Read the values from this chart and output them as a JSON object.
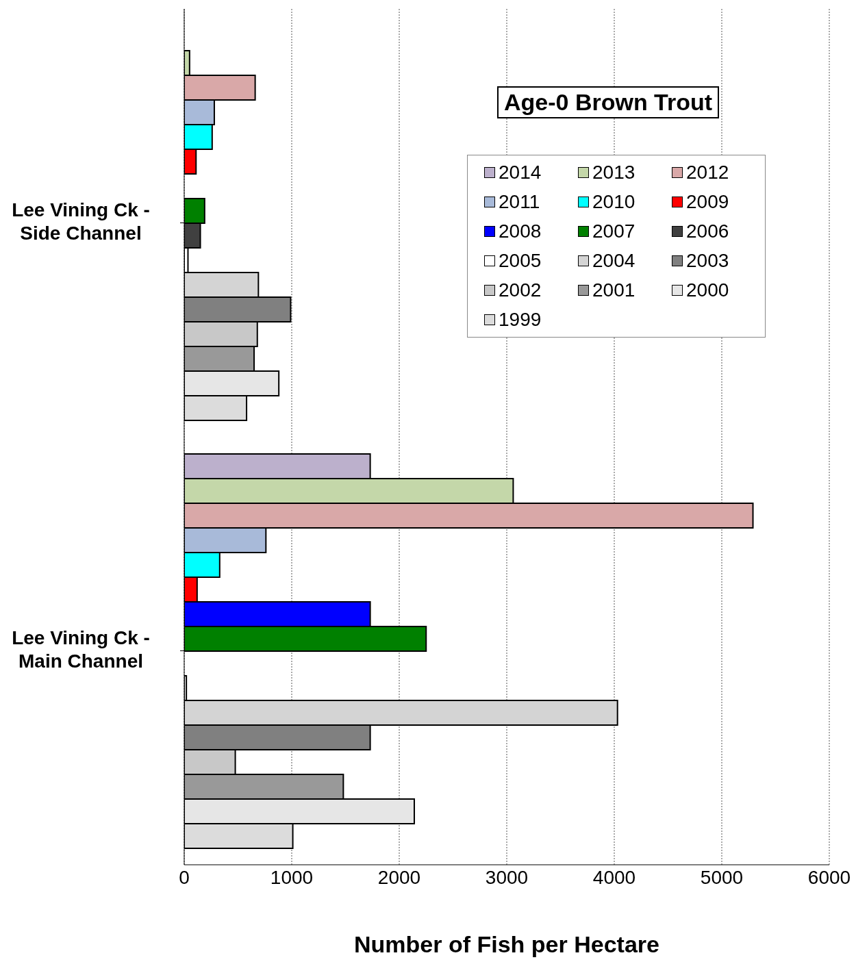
{
  "chart_data": {
    "type": "bar",
    "orientation": "horizontal",
    "title": "Age-0 Brown Trout",
    "xlabel": "Number of Fish per Hectare",
    "categories": [
      "Lee Vining Ck - Side Channel",
      "Lee Vining Ck - Main Channel"
    ],
    "series": [
      {
        "name": "2014",
        "color": "#bcb0cc",
        "values": [
          null,
          1730
        ]
      },
      {
        "name": "2013",
        "color": "#c4d7a9",
        "values": [
          50,
          3060
        ]
      },
      {
        "name": "2012",
        "color": "#d9a8a8",
        "values": [
          660,
          5290
        ]
      },
      {
        "name": "2011",
        "color": "#a8bad9",
        "values": [
          280,
          760
        ]
      },
      {
        "name": "2010",
        "color": "#00ffff",
        "values": [
          260,
          330
        ]
      },
      {
        "name": "2009",
        "color": "#ff0000",
        "values": [
          110,
          120
        ]
      },
      {
        "name": "2008",
        "color": "#0000ff",
        "values": [
          null,
          1730
        ]
      },
      {
        "name": "2007",
        "color": "#008000",
        "values": [
          190,
          2250
        ]
      },
      {
        "name": "2006",
        "color": "#404040",
        "values": [
          150,
          null
        ]
      },
      {
        "name": "2005",
        "color": "#ffffff",
        "values": [
          35,
          20
        ]
      },
      {
        "name": "2004",
        "color": "#d4d4d4",
        "values": [
          690,
          4030
        ]
      },
      {
        "name": "2003",
        "color": "#808080",
        "values": [
          990,
          1730
        ]
      },
      {
        "name": "2002",
        "color": "#c8c8c8",
        "values": [
          680,
          475
        ]
      },
      {
        "name": "2001",
        "color": "#999999",
        "values": [
          650,
          1480
        ]
      },
      {
        "name": "2000",
        "color": "#e6e6e6",
        "values": [
          880,
          2140
        ]
      },
      {
        "name": "1999",
        "color": "#dcdcdc",
        "values": [
          580,
          1010
        ]
      }
    ],
    "xlim": [
      0,
      6000
    ],
    "xticks": [
      0,
      1000,
      2000,
      3000,
      4000,
      5000,
      6000
    ],
    "grid": "x",
    "legend": "top right"
  }
}
